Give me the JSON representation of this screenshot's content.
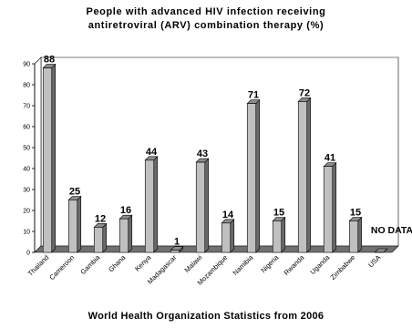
{
  "chart_data": {
    "type": "bar",
    "title": "People with advanced HIV infection receiving antiretroviral (ARV) combination therapy (%)",
    "title_lines": [
      "People with advanced HIV infection receiving",
      "antiretroviral (ARV) combination therapy (%)"
    ],
    "footer": "World Health Organization Statistics from 2006",
    "categories": [
      "Thailand",
      "Cameroon",
      "Gambia",
      "Ghana",
      "Kenya",
      "Madagascar",
      "Malawi",
      "Mozambique",
      "Namibia",
      "Nigeria",
      "Rwanda",
      "Uganda",
      "Zimbabwe",
      "USA"
    ],
    "values": [
      88,
      25,
      12,
      16,
      44,
      1,
      43,
      14,
      71,
      15,
      72,
      41,
      15,
      0
    ],
    "data_labels": [
      "88",
      "25",
      "12",
      "16",
      "44",
      "1",
      "43",
      "14",
      "71",
      "15",
      "72",
      "41",
      "15",
      "NO DATA"
    ],
    "yticks": [
      "0",
      "10",
      "20",
      "30",
      "40",
      "50",
      "60",
      "70",
      "80",
      "90"
    ],
    "ylim": [
      0,
      90
    ],
    "grid": false,
    "legend": "none",
    "bar_color": "#c0c0c0",
    "bar_side_color": "#6a6a6a",
    "bar_top_color": "#8c8c8c",
    "floor_color": "#707070",
    "wall_color": "#ffffff"
  }
}
